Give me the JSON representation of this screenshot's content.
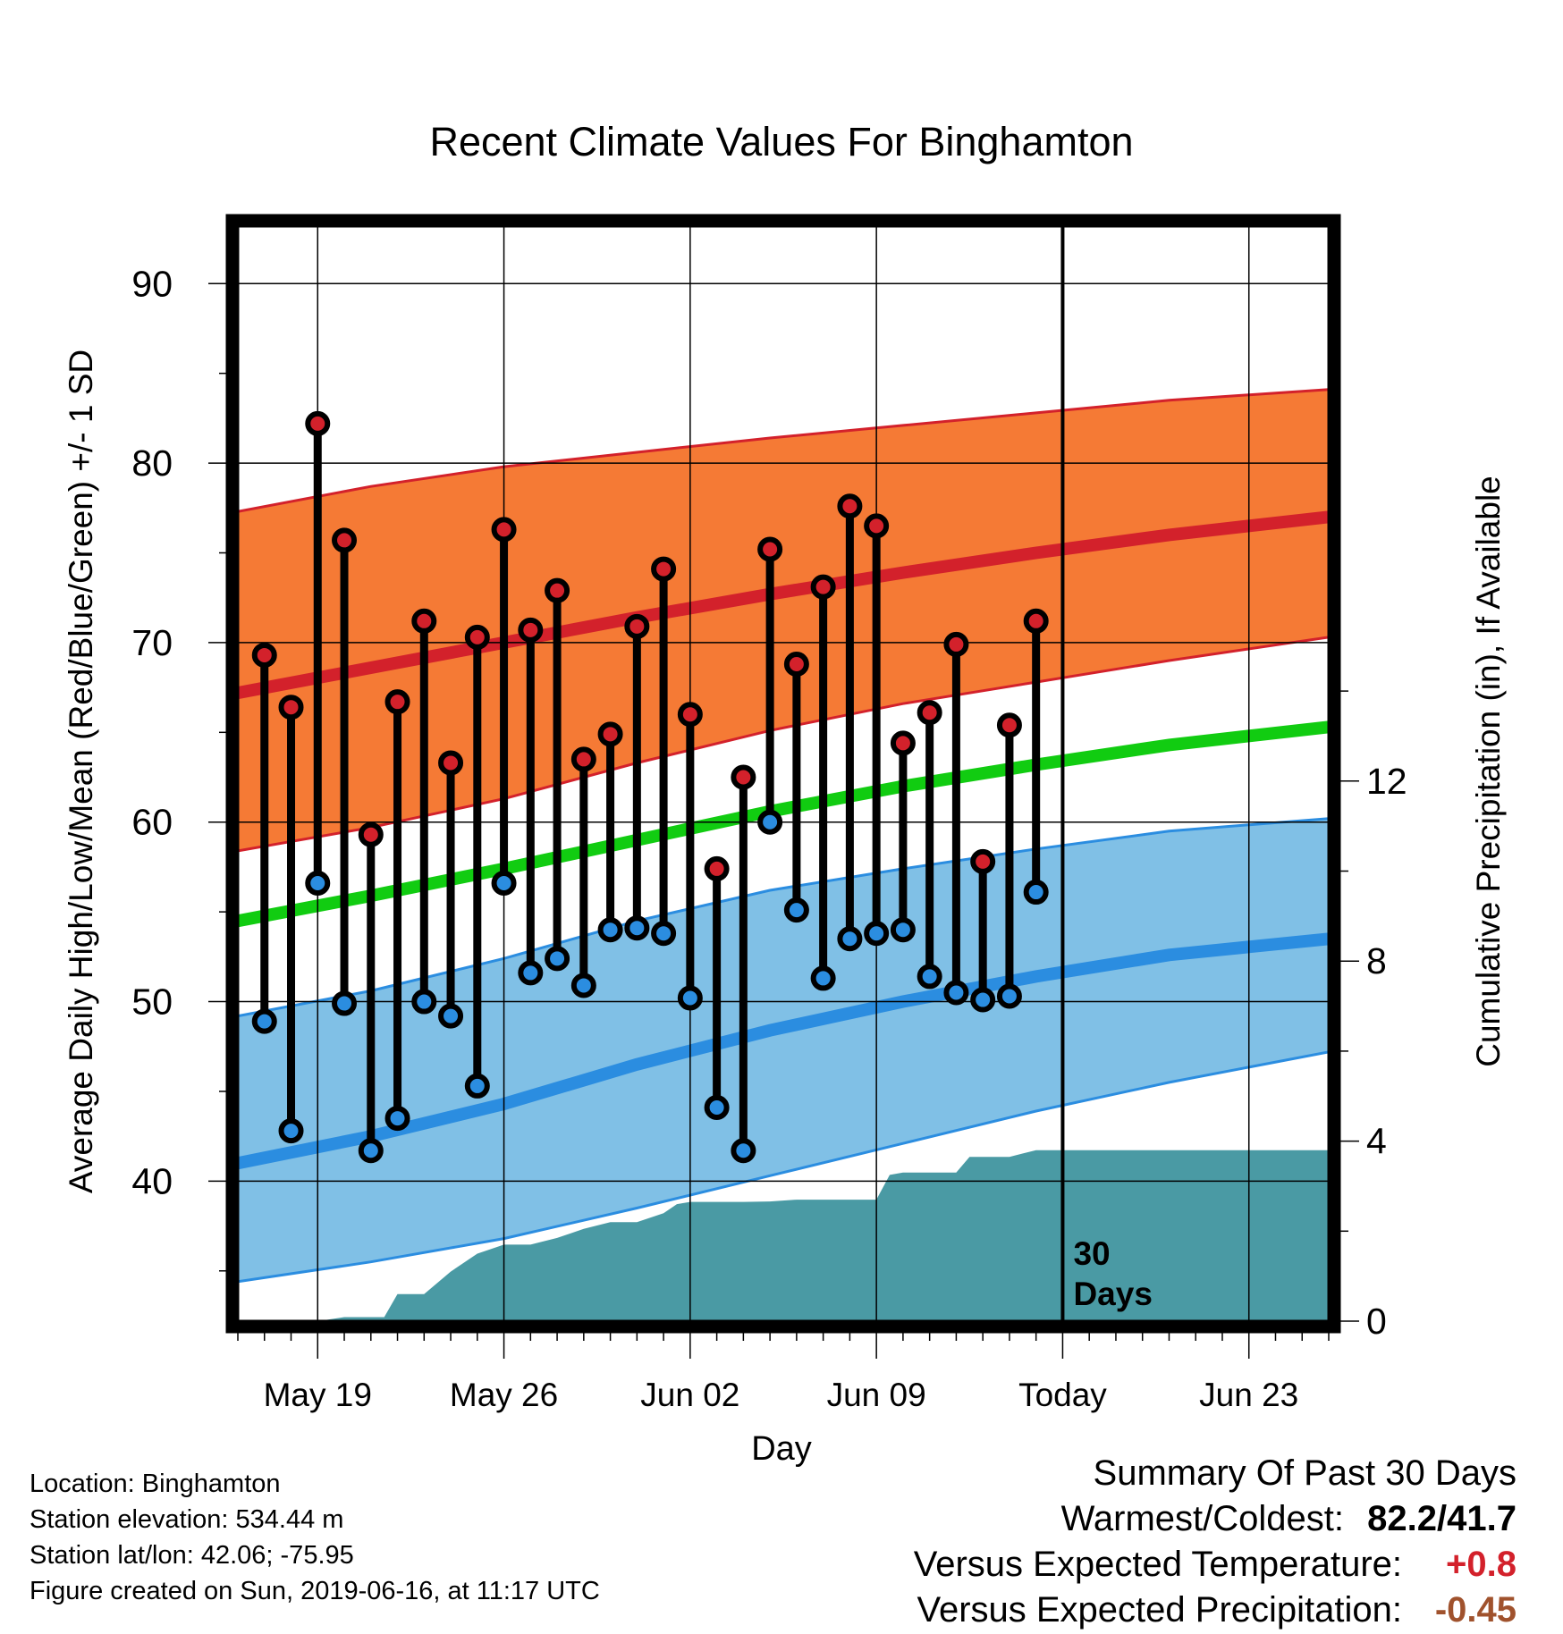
{
  "chart_data": {
    "type": "line",
    "title": "Recent Climate Values For Binghamton",
    "xlabel": "Day",
    "ylabel_left": "Average Daily High/Low/Mean (Red/Blue/Green) +/- 1 SD",
    "ylabel_right": "Cumulative Precipitation (in), If Available",
    "x_tick_labels": [
      "May 19",
      "May 26",
      "Jun 02",
      "Jun 09",
      "Today",
      "Jun 23"
    ],
    "x_tick_days": [
      3,
      10,
      17,
      24,
      31,
      38
    ],
    "x_range_days": [
      0,
      41
    ],
    "y_left_ticks": [
      40,
      50,
      60,
      70,
      80,
      90
    ],
    "y_left_range": [
      32.2,
      93.2
    ],
    "y_right_ticks": [
      0,
      4,
      8,
      12
    ],
    "y_right_range": [
      0,
      24.33
    ],
    "today_marker": {
      "day": 31,
      "label_line1": "30",
      "label_line2": "Days"
    },
    "normals": {
      "days": [
        0,
        5,
        10,
        15,
        20,
        25,
        30,
        35,
        41
      ],
      "high_mean": [
        67.2,
        68.6,
        70.0,
        71.4,
        72.7,
        73.9,
        75.0,
        76.0,
        77.0
      ],
      "high_upper": [
        77.3,
        78.7,
        79.8,
        80.6,
        81.4,
        82.1,
        82.8,
        83.5,
        84.1
      ],
      "high_lower": [
        58.4,
        59.7,
        61.3,
        63.3,
        65.1,
        66.6,
        67.8,
        69.0,
        70.3
      ],
      "low_mean": [
        41.0,
        42.5,
        44.3,
        46.5,
        48.4,
        50.0,
        51.4,
        52.6,
        53.5
      ],
      "low_upper": [
        49.2,
        50.6,
        52.4,
        54.5,
        56.2,
        57.4,
        58.5,
        59.5,
        60.2
      ],
      "low_lower": [
        34.4,
        35.5,
        36.8,
        38.5,
        40.3,
        42.1,
        43.9,
        45.5,
        47.2
      ],
      "mean_mean": [
        54.5,
        55.9,
        57.4,
        59.0,
        60.6,
        62.0,
        63.2,
        64.3,
        65.3
      ]
    },
    "series": [
      {
        "name": "High",
        "color": "#d3212b",
        "days": [
          1,
          2,
          3,
          4,
          5,
          6,
          7,
          8,
          9,
          10,
          11,
          12,
          13,
          14,
          15,
          16,
          17,
          18,
          19,
          20,
          21,
          22,
          23,
          24,
          25,
          26,
          27,
          28,
          29,
          30
        ],
        "values": [
          69.3,
          66.4,
          82.2,
          75.7,
          59.3,
          66.7,
          71.2,
          63.3,
          70.3,
          76.3,
          70.7,
          72.9,
          63.5,
          64.9,
          70.9,
          74.1,
          66.0,
          57.4,
          62.5,
          75.2,
          68.8,
          73.1,
          77.6,
          76.5,
          64.4,
          66.1,
          69.9,
          57.8,
          65.4,
          71.2
        ]
      },
      {
        "name": "Low",
        "color": "#2b8de0",
        "days": [
          1,
          2,
          3,
          4,
          5,
          6,
          7,
          8,
          9,
          10,
          11,
          12,
          13,
          14,
          15,
          16,
          17,
          18,
          19,
          20,
          21,
          22,
          23,
          24,
          25,
          26,
          27,
          28,
          29,
          30
        ],
        "values": [
          48.9,
          42.8,
          56.6,
          49.9,
          41.7,
          43.5,
          50.0,
          49.2,
          45.3,
          56.6,
          51.6,
          52.4,
          50.9,
          54.0,
          54.1,
          53.8,
          50.2,
          44.1,
          41.7,
          60.0,
          55.1,
          51.3,
          53.5,
          53.8,
          54.0,
          51.4,
          50.5,
          50.1,
          50.3,
          56.1
        ]
      },
      {
        "name": "Cumulative Precipitation",
        "color": "#4a9aa4",
        "days": [
          0,
          1,
          2,
          3,
          4,
          5,
          5.5,
          6,
          7,
          8,
          9,
          10,
          11,
          12,
          13,
          14,
          15,
          16,
          16.5,
          17,
          18,
          19,
          20,
          21,
          22,
          23,
          24,
          24.5,
          25,
          26,
          27,
          27.5,
          28,
          29,
          30,
          31,
          41
        ],
        "values": [
          0,
          0,
          0,
          0,
          0.09,
          0.09,
          0.09,
          0.6,
          0.6,
          1.1,
          1.5,
          1.7,
          1.7,
          1.85,
          2.05,
          2.2,
          2.2,
          2.4,
          2.6,
          2.65,
          2.65,
          2.65,
          2.66,
          2.7,
          2.7,
          2.7,
          2.7,
          3.25,
          3.3,
          3.3,
          3.3,
          3.65,
          3.65,
          3.65,
          3.8,
          3.8,
          3.8
        ]
      }
    ]
  },
  "info": {
    "location": "Location: Binghamton",
    "elevation": "Station elevation: 534.44 m",
    "latlon": "Station lat/lon: 42.06; -75.95",
    "created": "Figure created on Sun, 2019-06-16, at 11:17 UTC"
  },
  "summary": {
    "title": "Summary Of Past 30 Days",
    "warm_label": "Warmest/Coldest:",
    "warm_value": "82.2/41.7",
    "temp_label": "Versus Expected Temperature:",
    "temp_value": "+0.8",
    "precip_label": "Versus Expected Precipitation:",
    "precip_value": "-0.45"
  },
  "colors": {
    "high_band": "#f57a35",
    "high_line": "#d3212b",
    "low_band": "#80c0e6",
    "low_line": "#2b8de0",
    "mean_line": "#11cc11",
    "precip": "#4a9aa4"
  }
}
